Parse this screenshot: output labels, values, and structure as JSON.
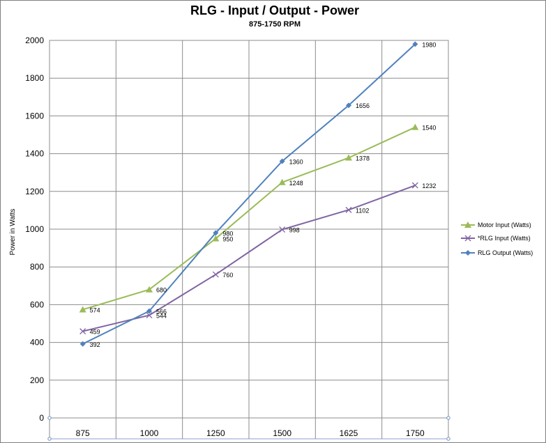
{
  "chart_data": {
    "type": "line",
    "title": "RLG - Input / Output - Power",
    "subtitle": "875-1750 RPM",
    "xlabel": "",
    "ylabel": "Power in Watts",
    "categories": [
      "875",
      "1000",
      "1250",
      "1500",
      "1625",
      "1750"
    ],
    "ylim": [
      0,
      2000
    ],
    "yticks": [
      0,
      200,
      400,
      600,
      800,
      1000,
      1200,
      1400,
      1600,
      1800,
      2000
    ],
    "grid": true,
    "legend_position": "right",
    "series": [
      {
        "name": "Motor Input (Watts)",
        "values": [
          574,
          680,
          950,
          1248,
          1378,
          1540
        ],
        "color": "#9bbb59",
        "marker": "triangle"
      },
      {
        "name": "*RLG Input (Watts)",
        "values": [
          459,
          544,
          760,
          998,
          1102,
          1232
        ],
        "color": "#8064a2",
        "marker": "x"
      },
      {
        "name": "RLG Output (Watts)",
        "values": [
          392,
          566,
          980,
          1360,
          1656,
          1980
        ],
        "color": "#4f81bd",
        "marker": "diamond"
      }
    ]
  }
}
